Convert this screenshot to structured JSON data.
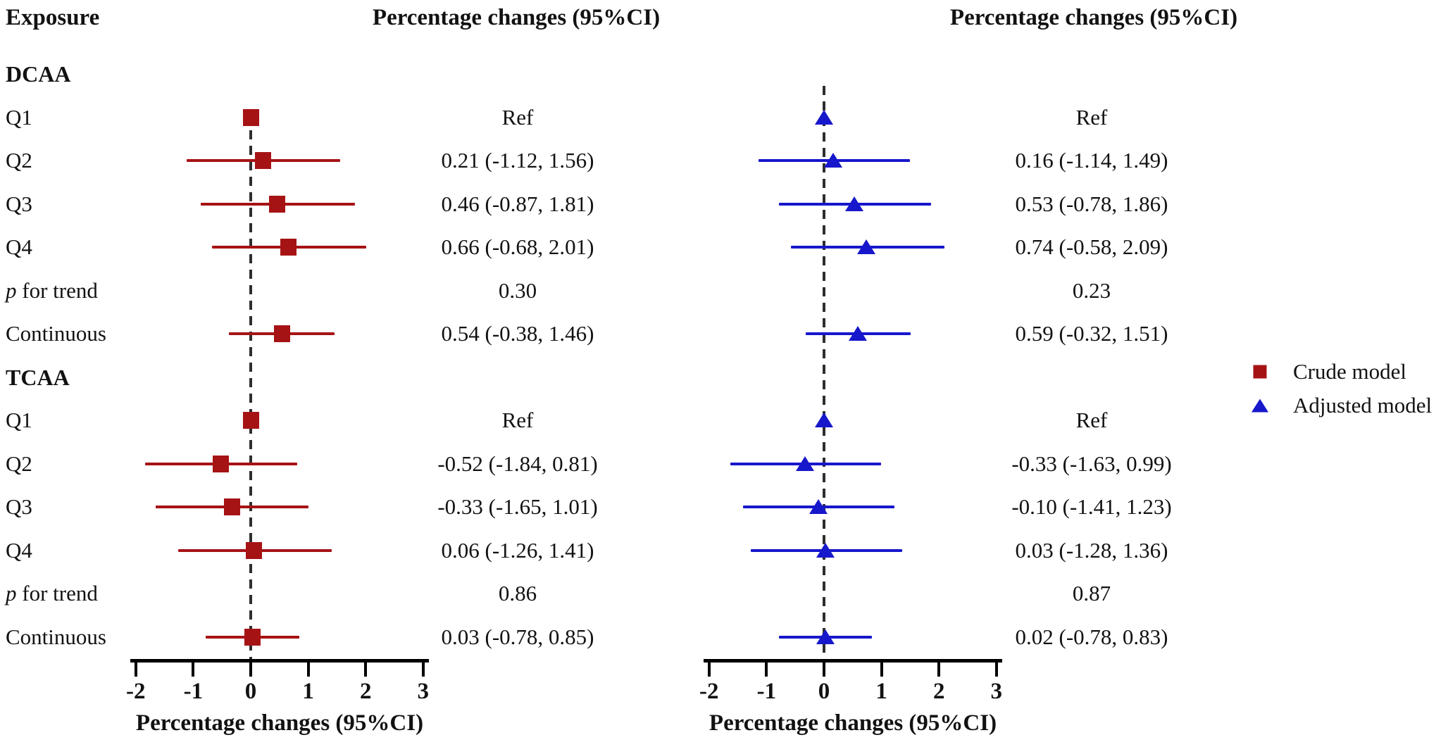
{
  "header": {
    "exposure_label": "Exposure",
    "left_panel_title": "Percentage changes (95%CI)",
    "right_panel_title": "Percentage changes (95%CI)"
  },
  "colors": {
    "crude": "#A61315",
    "adjusted": "#1717CC",
    "dashed_line": "#2E2E2E",
    "axis": "#000000",
    "text": "#121212"
  },
  "legend": {
    "items": [
      {
        "marker": "square-icon",
        "color_key": "crude",
        "label": "Crude model"
      },
      {
        "marker": "triangle-icon",
        "color_key": "adjusted",
        "label": "Adjusted model"
      }
    ]
  },
  "x_axis": {
    "range": [
      -2,
      3
    ],
    "ticks": [
      -2,
      -1,
      0,
      1,
      2,
      3
    ],
    "tick_labels": [
      "-2",
      "-1",
      "0",
      "1",
      "2",
      "3"
    ],
    "label": "Percentage changes (95%CI)"
  },
  "chart_data": {
    "type": "forest",
    "panels": [
      {
        "key": "crude",
        "name": "Crude model",
        "marker": "square"
      },
      {
        "key": "adjusted",
        "name": "Adjusted model",
        "marker": "triangle"
      }
    ],
    "zero_reference_line": 0,
    "rows": [
      {
        "kind": "group",
        "label": "DCAA"
      },
      {
        "kind": "estimate",
        "label": "Q1",
        "crude": {
          "text": "Ref",
          "est": 0
        },
        "adjusted": {
          "text": "Ref",
          "est": 0
        }
      },
      {
        "kind": "estimate",
        "label": "Q2",
        "crude": {
          "text": "0.21 (-1.12, 1.56)",
          "est": 0.21,
          "lo": -1.12,
          "hi": 1.56
        },
        "adjusted": {
          "text": "0.16 (-1.14, 1.49)",
          "est": 0.16,
          "lo": -1.14,
          "hi": 1.49
        }
      },
      {
        "kind": "estimate",
        "label": "Q3",
        "crude": {
          "text": "0.46 (-0.87, 1.81)",
          "est": 0.46,
          "lo": -0.87,
          "hi": 1.81
        },
        "adjusted": {
          "text": "0.53 (-0.78, 1.86)",
          "est": 0.53,
          "lo": -0.78,
          "hi": 1.86
        }
      },
      {
        "kind": "estimate",
        "label": "Q4",
        "crude": {
          "text": "0.66 (-0.68, 2.01)",
          "est": 0.66,
          "lo": -0.68,
          "hi": 2.01
        },
        "adjusted": {
          "text": "0.74 (-0.58, 2.09)",
          "est": 0.74,
          "lo": -0.58,
          "hi": 2.09
        }
      },
      {
        "kind": "pvalue",
        "label_parts": [
          {
            "text": "p",
            "italic": true
          },
          {
            "text": " for trend",
            "italic": false
          }
        ],
        "crude": {
          "text": "0.30"
        },
        "adjusted": {
          "text": "0.23"
        }
      },
      {
        "kind": "estimate",
        "label": "Continuous",
        "crude": {
          "text": "0.54 (-0.38, 1.46)",
          "est": 0.54,
          "lo": -0.38,
          "hi": 1.46
        },
        "adjusted": {
          "text": "0.59 (-0.32, 1.51)",
          "est": 0.59,
          "lo": -0.32,
          "hi": 1.51
        }
      },
      {
        "kind": "group",
        "label": "TCAA"
      },
      {
        "kind": "estimate",
        "label": "Q1",
        "crude": {
          "text": "Ref",
          "est": 0
        },
        "adjusted": {
          "text": "Ref",
          "est": 0
        }
      },
      {
        "kind": "estimate",
        "label": "Q2",
        "crude": {
          "text": "-0.52 (-1.84, 0.81)",
          "est": -0.52,
          "lo": -1.84,
          "hi": 0.81
        },
        "adjusted": {
          "text": "-0.33 (-1.63, 0.99)",
          "est": -0.33,
          "lo": -1.63,
          "hi": 0.99
        }
      },
      {
        "kind": "estimate",
        "label": "Q3",
        "crude": {
          "text": "-0.33 (-1.65, 1.01)",
          "est": -0.33,
          "lo": -1.65,
          "hi": 1.01
        },
        "adjusted": {
          "text": "-0.10 (-1.41, 1.23)",
          "est": -0.1,
          "lo": -1.41,
          "hi": 1.23
        }
      },
      {
        "kind": "estimate",
        "label": "Q4",
        "crude": {
          "text": "0.06 (-1.26, 1.41)",
          "est": 0.06,
          "lo": -1.26,
          "hi": 1.41
        },
        "adjusted": {
          "text": "0.03 (-1.28, 1.36)",
          "est": 0.03,
          "lo": -1.28,
          "hi": 1.36
        }
      },
      {
        "kind": "pvalue",
        "label_parts": [
          {
            "text": "p",
            "italic": true
          },
          {
            "text": " for trend",
            "italic": false
          }
        ],
        "crude": {
          "text": "0.86"
        },
        "adjusted": {
          "text": "0.87"
        }
      },
      {
        "kind": "estimate",
        "label": "Continuous",
        "crude": {
          "text": "0.03 (-0.78, 0.85)",
          "est": 0.03,
          "lo": -0.78,
          "hi": 0.85
        },
        "adjusted": {
          "text": "0.02 (-0.78, 0.83)",
          "est": 0.02,
          "lo": -0.78,
          "hi": 0.83
        }
      }
    ]
  }
}
